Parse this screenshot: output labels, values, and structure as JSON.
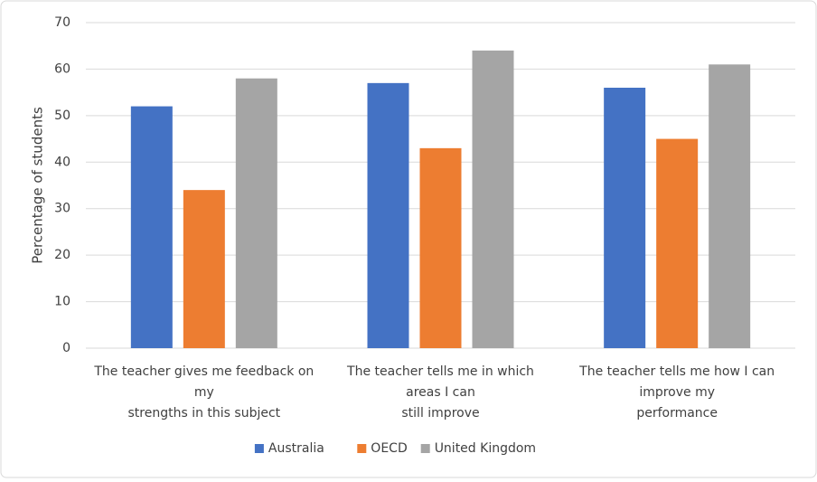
{
  "chart_data": {
    "type": "bar",
    "y_label": "Percentage of students",
    "categories": [
      [
        "The teacher gives me feedback on",
        "my",
        "strengths in this subject"
      ],
      [
        "The teacher tells me in which",
        "areas I can",
        "still improve"
      ],
      [
        "The teacher tells me how I can",
        "improve my",
        "performance"
      ]
    ],
    "series": [
      {
        "name": "Australia",
        "color": "#4472c4",
        "values": [
          52,
          57,
          56
        ]
      },
      {
        "name": "OECD",
        "color": "#ed7d31",
        "values": [
          34,
          43,
          45
        ]
      },
      {
        "name": "United Kingdom",
        "color": "#a5a5a5",
        "values": [
          58,
          64,
          61
        ]
      }
    ],
    "ylim": [
      0,
      70
    ],
    "yticks": [
      0,
      10,
      20,
      30,
      40,
      50,
      60,
      70
    ],
    "grid": true,
    "legend": "bottom"
  }
}
